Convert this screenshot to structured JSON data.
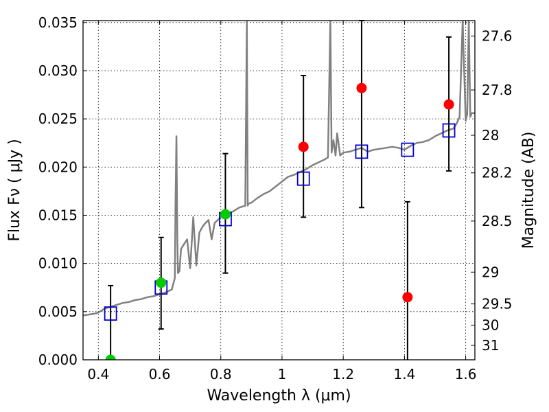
{
  "chart_data": {
    "type": "scatter",
    "title": "",
    "xlabel": "Wavelength  λ (μm)",
    "ylabel": "Flux  Fν  ( μJy )",
    "y2label": "Magnitude (AB)",
    "xlim": [
      0.35,
      1.63
    ],
    "ylim": [
      0.0,
      0.0352
    ],
    "grid": true,
    "grid_style": "dotted",
    "x_ticks": [
      0.4,
      0.6,
      0.8,
      1.0,
      1.2,
      1.4,
      1.6
    ],
    "x_tick_labels": [
      "0.4",
      "0.6",
      "0.8",
      "1",
      "1.2",
      "1.4",
      "1.6"
    ],
    "y_ticks": [
      0.0,
      0.005,
      0.01,
      0.015,
      0.02,
      0.025,
      0.03,
      0.035
    ],
    "y_tick_labels": [
      "0.000",
      "0.005",
      "0.010",
      "0.015",
      "0.020",
      "0.025",
      "0.030",
      "0.035"
    ],
    "y2_ticks": [
      {
        "flux": 0.0336,
        "label": "27.6"
      },
      {
        "flux": 0.028,
        "label": "27.8"
      },
      {
        "flux": 0.0233,
        "label": "28"
      },
      {
        "flux": 0.0194,
        "label": "28.2"
      },
      {
        "flux": 0.0144,
        "label": "28.5"
      },
      {
        "flux": 0.0091,
        "label": "29"
      },
      {
        "flux": 0.0058,
        "label": "29.5"
      },
      {
        "flux": 0.0036,
        "label": "30"
      },
      {
        "flux": 0.0015,
        "label": "31"
      }
    ],
    "colors": {
      "spectrum": "#808080",
      "model_photometry": "#0000cc",
      "detections": "#00cc00",
      "upper_limits": "#ff0000",
      "errorbars": "#000000",
      "grid": "#000000"
    },
    "spectrum": {
      "x": [
        0.35,
        0.37,
        0.39,
        0.4,
        0.42,
        0.44,
        0.46,
        0.48,
        0.5,
        0.52,
        0.54,
        0.56,
        0.58,
        0.6,
        0.62,
        0.64,
        0.65,
        0.652,
        0.655,
        0.658,
        0.66,
        0.665,
        0.67,
        0.69,
        0.7,
        0.71,
        0.72,
        0.73,
        0.74,
        0.75,
        0.76,
        0.77,
        0.78,
        0.8,
        0.82,
        0.84,
        0.86,
        0.88,
        0.885,
        0.888,
        0.89,
        0.9,
        0.92,
        0.94,
        0.96,
        0.98,
        1.0,
        1.02,
        1.04,
        1.06,
        1.08,
        1.1,
        1.12,
        1.14,
        1.15,
        1.158,
        1.162,
        1.168,
        1.175,
        1.18,
        1.19,
        1.2,
        1.22,
        1.24,
        1.25,
        1.26,
        1.28,
        1.3,
        1.32,
        1.34,
        1.36,
        1.38,
        1.4,
        1.42,
        1.44,
        1.46,
        1.48,
        1.5,
        1.52,
        1.54,
        1.56,
        1.57,
        1.58,
        1.59,
        1.6,
        1.605,
        1.61,
        1.615,
        1.62,
        1.63
      ],
      "y": [
        0.0046,
        0.0047,
        0.0048,
        0.0049,
        0.0053,
        0.0055,
        0.0057,
        0.0059,
        0.006,
        0.0062,
        0.0063,
        0.0065,
        0.0066,
        0.0068,
        0.007,
        0.0073,
        0.0085,
        0.016,
        0.0232,
        0.0125,
        0.009,
        0.0092,
        0.0115,
        0.0125,
        0.0095,
        0.0148,
        0.0098,
        0.0132,
        0.0138,
        0.0142,
        0.0145,
        0.0125,
        0.0142,
        0.0148,
        0.0152,
        0.0154,
        0.0158,
        0.016,
        0.0352,
        0.016,
        0.0162,
        0.0163,
        0.0168,
        0.0172,
        0.0175,
        0.018,
        0.0185,
        0.019,
        0.0192,
        0.0195,
        0.0198,
        0.0202,
        0.0205,
        0.0208,
        0.021,
        0.0352,
        0.0215,
        0.0228,
        0.0212,
        0.0235,
        0.0212,
        0.0215,
        0.0216,
        0.0218,
        0.0219,
        0.022,
        0.0216,
        0.0218,
        0.0219,
        0.022,
        0.0221,
        0.022,
        0.0218,
        0.0222,
        0.0225,
        0.0226,
        0.0228,
        0.0232,
        0.0235,
        0.0238,
        0.024,
        0.0245,
        0.0252,
        0.0352,
        0.0248,
        0.0255,
        0.0352,
        0.0252,
        0.0256,
        0.0256
      ]
    },
    "model_photometry": {
      "name": "",
      "x": [
        0.44,
        0.605,
        0.815,
        1.07,
        1.26,
        1.41,
        1.545
      ],
      "y": [
        0.0048,
        0.0075,
        0.0146,
        0.0188,
        0.0216,
        0.0218,
        0.0238
      ]
    },
    "detections": {
      "name": "",
      "x": [
        0.44,
        0.605,
        0.815
      ],
      "y": [
        0.0,
        0.008,
        0.0151
      ],
      "err_low": [
        0.0,
        0.0048,
        0.0061
      ],
      "err_high": [
        0.0077,
        0.0047,
        0.0063
      ]
    },
    "upper_limits": {
      "name": "",
      "x": [
        1.07,
        1.26,
        1.41,
        1.545
      ],
      "y": [
        0.0221,
        0.0282,
        0.0065,
        0.0265
      ],
      "err_low": [
        0.0073,
        0.0124,
        0.0065,
        0.0069
      ],
      "err_high": [
        0.0074,
        0.0071,
        0.0099,
        0.007
      ]
    }
  }
}
